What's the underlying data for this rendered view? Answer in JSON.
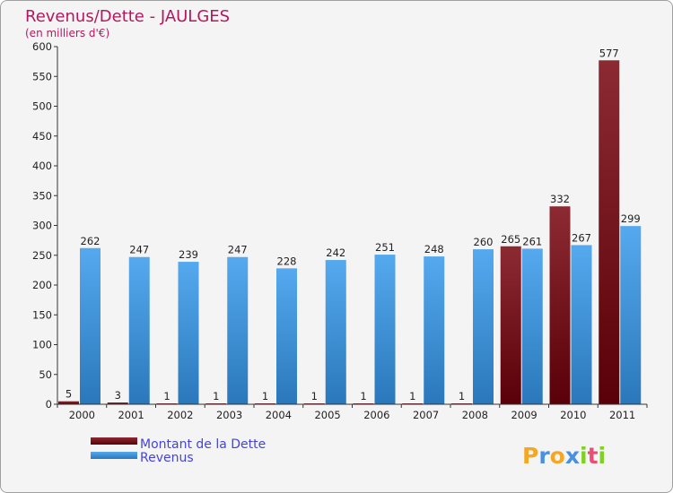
{
  "chart_data": {
    "type": "bar",
    "title": "Revenus/Dette - JAULGES",
    "subtitle": "(en milliers d'€)",
    "categories": [
      "2000",
      "2001",
      "2002",
      "2003",
      "2004",
      "2005",
      "2006",
      "2007",
      "2008",
      "2009",
      "2010",
      "2011"
    ],
    "series": [
      {
        "name": "Montant de la Dette",
        "color": "#6e0a10",
        "values": [
          5,
          3,
          1,
          1,
          1,
          1,
          1,
          1,
          1,
          265,
          332,
          577
        ]
      },
      {
        "name": "Revenus",
        "color": "#3d97dd",
        "values": [
          262,
          247,
          239,
          247,
          228,
          242,
          251,
          248,
          260,
          261,
          267,
          299
        ]
      }
    ],
    "ylim": [
      0,
      600
    ],
    "yticks": [
      0,
      50,
      100,
      150,
      200,
      250,
      300,
      350,
      400,
      450,
      500,
      550,
      600
    ],
    "grid": false,
    "legend": "bottom-left"
  },
  "brand": {
    "letters": [
      "P",
      "r",
      "o",
      "x",
      "i",
      "t",
      "i"
    ],
    "colors": [
      "#f5a623",
      "#4a90e2",
      "#f5a623",
      "#4a90e2",
      "#7ed321",
      "#e94e77",
      "#7ed321"
    ]
  }
}
